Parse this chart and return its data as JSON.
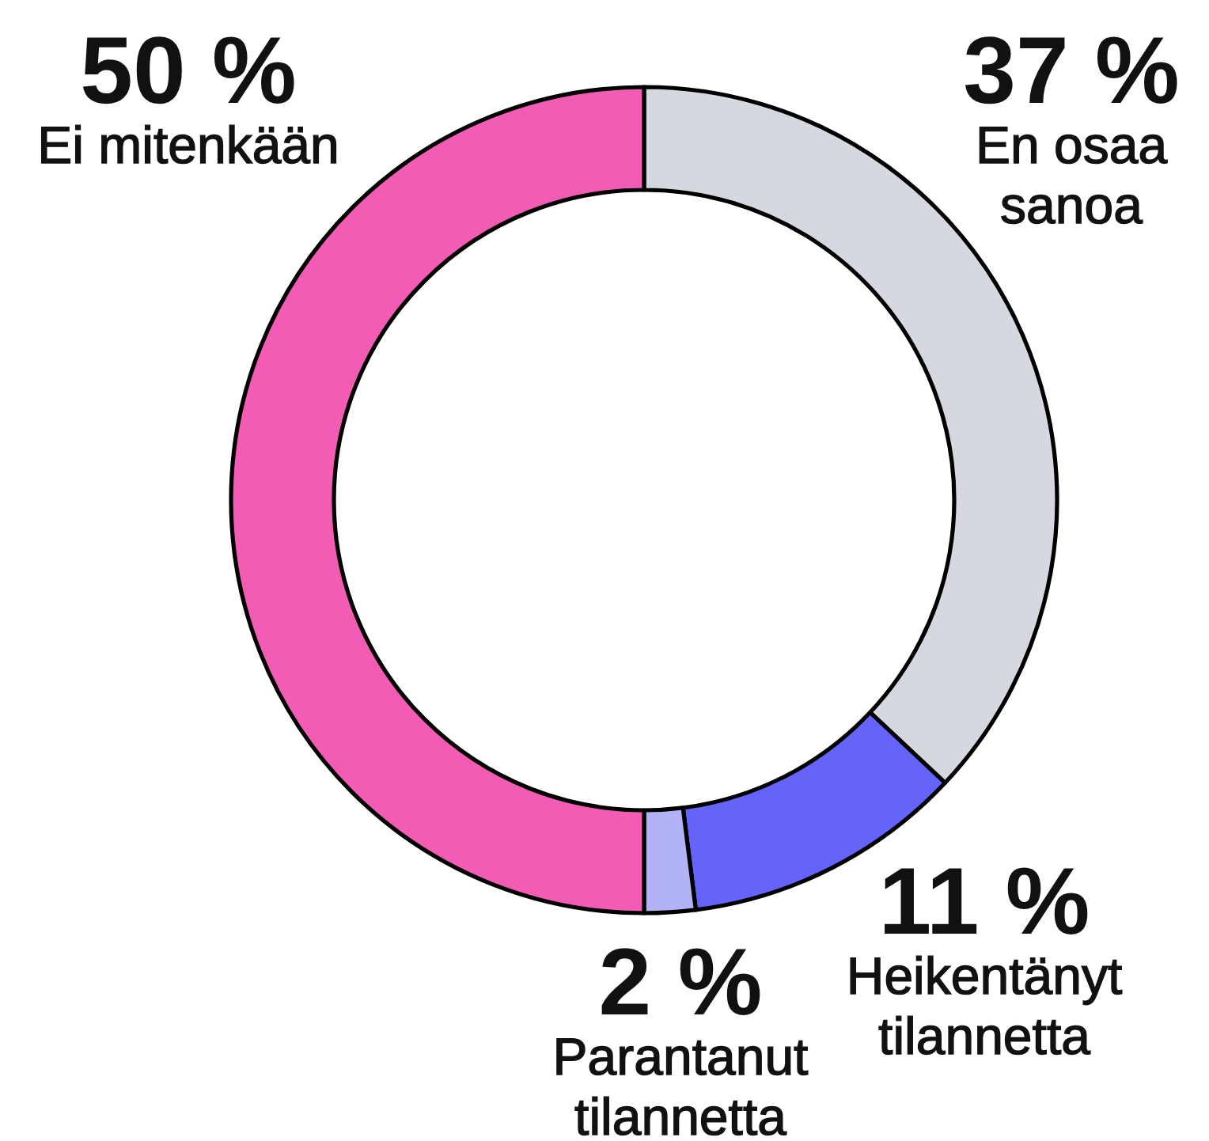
{
  "chart_data": {
    "type": "donut",
    "categories": [
      "En osaa sanoa",
      "Heikentänyt tilannetta",
      "Parantanut tilannetta",
      "Ei mitenkään"
    ],
    "values": [
      37,
      11,
      2,
      50
    ],
    "colors": [
      "#d5d8df",
      "#6464fb",
      "#b2b2f7",
      "#f35cb4"
    ],
    "value_labels": [
      "37 %",
      "11 %",
      "2 %",
      "50 %"
    ]
  }
}
